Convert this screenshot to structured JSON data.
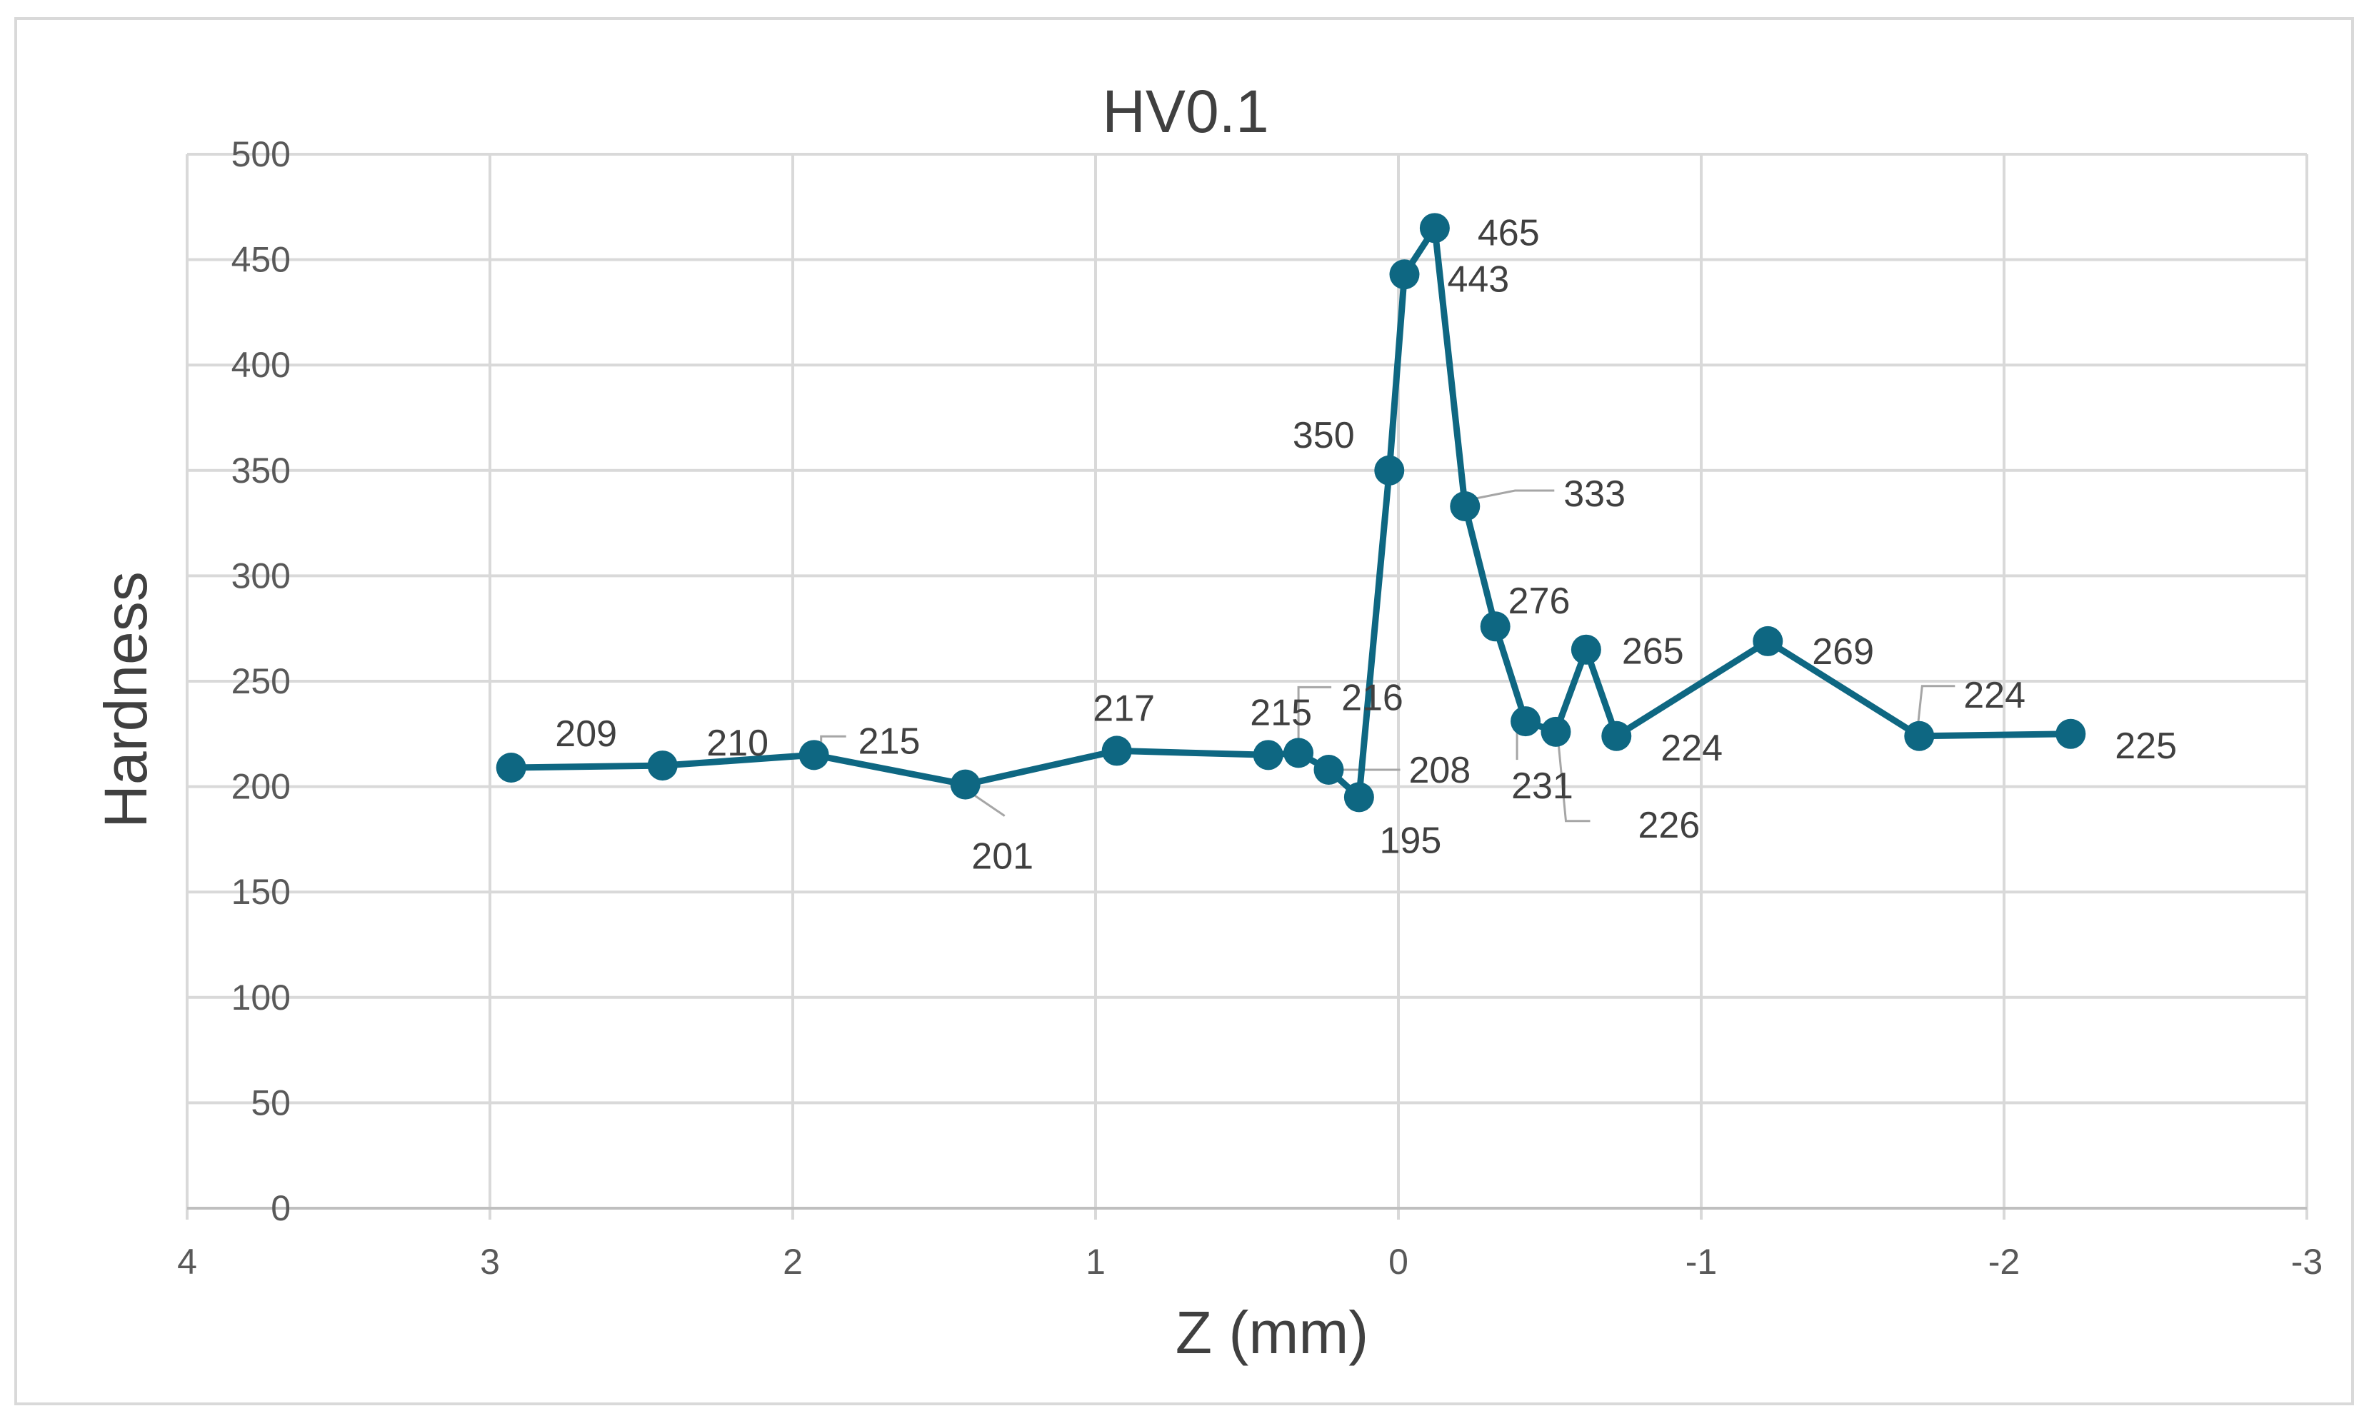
{
  "chart_data": {
    "type": "line",
    "title": "HV0.1",
    "xlabel": "Z (mm)",
    "ylabel": "Hardness",
    "xlim": [
      4,
      -3
    ],
    "ylim": [
      0,
      500
    ],
    "x_reversed": true,
    "x_ticks": [
      4,
      3,
      2,
      1,
      0,
      -1,
      -2,
      -3
    ],
    "y_ticks": [
      0,
      50,
      100,
      150,
      200,
      250,
      300,
      350,
      400,
      450,
      500
    ],
    "grid": true,
    "legend": "none",
    "color": "#0e6782",
    "series": [
      {
        "x": [
          2.93,
          2.43,
          1.93,
          1.43,
          0.93,
          0.43,
          0.33,
          0.23,
          0.13,
          0.03,
          -0.02,
          -0.12,
          -0.22,
          -0.32,
          -0.42,
          -0.52,
          -0.62,
          -0.72,
          -1.22,
          -1.72,
          -2.22
        ],
        "y": [
          209,
          210,
          215,
          201,
          217,
          215,
          216,
          208,
          195,
          350,
          443,
          465,
          333,
          276,
          231,
          226,
          265,
          224,
          269,
          224,
          225
        ],
        "labels": [
          "209",
          "210",
          "215",
          "201",
          "217",
          "215",
          "216",
          "208",
          "195",
          "350",
          "443",
          "465",
          "333",
          "276",
          "231",
          "226",
          "265",
          "224",
          "269",
          "224",
          "225"
        ]
      }
    ]
  }
}
